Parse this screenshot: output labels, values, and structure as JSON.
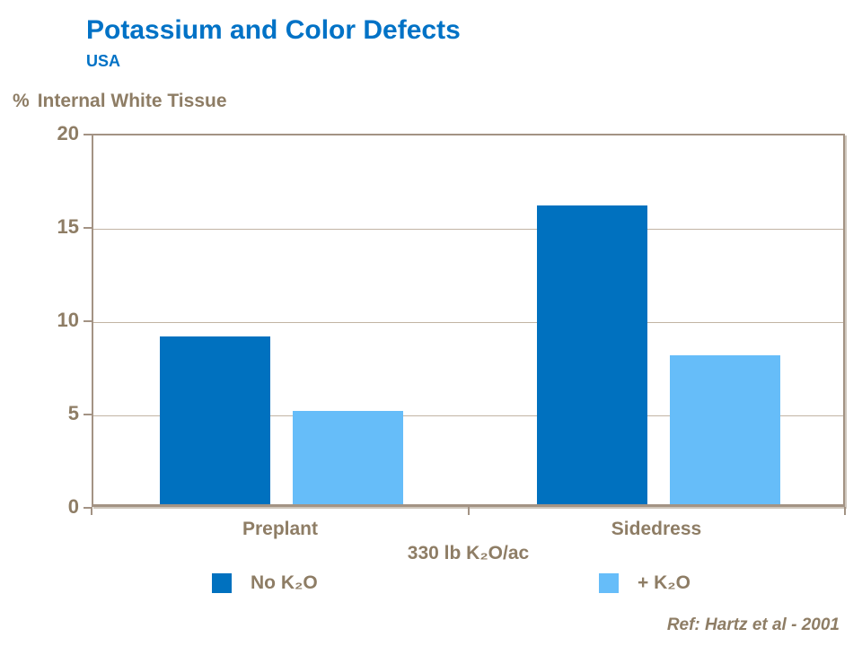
{
  "title": "Potassium and Color Defects",
  "subtitle": "USA",
  "y_axis_unit": "%",
  "y_axis_label": "Internal White Tissue",
  "footnote": "Ref: Hartz et al - 2001",
  "colors": {
    "title_blue": "#0072C6",
    "series_dark_blue": "#0071BF",
    "series_light_blue": "#66BDF9",
    "text_brown": "#8E7D65",
    "gridline_tan": "#C2B4A4",
    "frame_tan": "#A39384"
  },
  "chart_data": {
    "type": "bar",
    "categories": [
      "Preplant",
      "Sidedress"
    ],
    "series": [
      {
        "name": "No K₂O",
        "color_key": "series_dark_blue",
        "values": [
          9,
          16
        ]
      },
      {
        "name": "+ K₂O",
        "color_key": "series_light_blue",
        "values": [
          5,
          8
        ]
      }
    ],
    "title": "Potassium and Color Defects",
    "subtitle": "USA",
    "xlabel": "330 lb K₂O/ac",
    "ylabel": "% Internal White Tissue",
    "ylim": [
      0,
      20
    ],
    "yticks": [
      0,
      5,
      10,
      15,
      20
    ],
    "grid": "horizontal",
    "legend_position": "bottom"
  }
}
